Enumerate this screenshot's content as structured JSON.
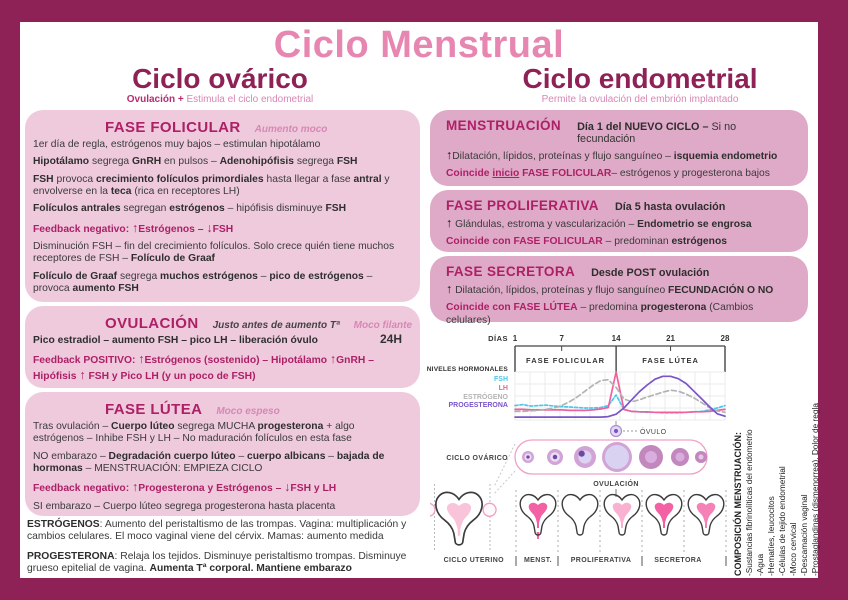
{
  "page": {
    "title": "Ciclo Menstrual"
  },
  "palette": {
    "frame": "#8e2156",
    "title_pink": "#e886b2",
    "heading_magenta": "#ad2066",
    "box_left_bg": "#efcadd",
    "box_right_bg": "#dfaac8",
    "tag_pink": "#d887b4"
  },
  "columns": {
    "ovarico": {
      "title": "Ciclo ovárico",
      "subtitle": [
        {
          "t": "Ovulación + ",
          "c": "sub1"
        },
        {
          "t": "Estimula el ciclo endometrial",
          "c": "sub2"
        }
      ]
    },
    "endometrial": {
      "title": "Ciclo endometrial",
      "subtitle": [
        {
          "t": "Permite la ovulación del embrión implantado",
          "c": "sub2"
        }
      ]
    }
  },
  "boxes": {
    "folicular": {
      "title": "FASE FOLICULAR",
      "tag": "Aumento moco",
      "lines": [
        [
          {
            "t": "1er día de regla, estrógenos muy bajos – estimulan hipotálamo"
          }
        ],
        [
          {
            "t": "Hipotálamo",
            "c": "b"
          },
          {
            "t": " segrega "
          },
          {
            "t": "GnRH",
            "c": "b"
          },
          {
            "t": " en pulsos – "
          },
          {
            "t": "Adenohipófisis",
            "c": "b"
          },
          {
            "t": " segrega "
          },
          {
            "t": "FSH",
            "c": "b"
          }
        ],
        [
          {
            "t": "FSH",
            "c": "b"
          },
          {
            "t": " provoca "
          },
          {
            "t": "crecimiento folículos primordiales",
            "c": "b"
          },
          {
            "t": " hasta llegar a fase "
          },
          {
            "t": "antral",
            "c": "b"
          },
          {
            "t": " y envolverse en la "
          },
          {
            "t": "teca",
            "c": "b"
          },
          {
            "t": " (rica en receptores LH)"
          }
        ],
        [
          {
            "t": "Folículos antrales",
            "c": "b"
          },
          {
            "t": " segregan "
          },
          {
            "t": "estrógenos",
            "c": "b"
          },
          {
            "t": " – hipófisis disminuye "
          },
          {
            "t": "FSH",
            "c": "b"
          }
        ],
        [
          {
            "t": "Feedback negativo:  ",
            "c": "m"
          },
          {
            "t": "↑",
            "c": "m ar"
          },
          {
            "t": "Estrógenos –  ",
            "c": "m"
          },
          {
            "t": "↓",
            "c": "m ar"
          },
          {
            "t": "FSH",
            "c": "m"
          }
        ],
        [
          {
            "t": "Disminución FSH – fin del crecimiento folículos. Solo crece quién tiene muchos receptores de FSH – "
          },
          {
            "t": "Folículo de Graaf",
            "c": "b"
          }
        ],
        [
          {
            "t": "Folículo de Graaf",
            "c": "b"
          },
          {
            "t": " segrega "
          },
          {
            "t": "muchos estrógenos",
            "c": "b"
          },
          {
            "t": " – "
          },
          {
            "t": "pico de estrógenos",
            "c": "b"
          },
          {
            "t": " – provoca "
          },
          {
            "t": "aumento FSH",
            "c": "b"
          }
        ]
      ]
    },
    "ovulacion": {
      "title": "OVULACIÓN",
      "tag_dark": "Justo antes de aumento Tª",
      "tag": "Moco filante",
      "duration": "24H",
      "lines": [
        [
          {
            "t": "Pico estradiol – aumento FSH – pico LH – liberación óvulo",
            "c": "b"
          }
        ],
        [
          {
            "t": "Feedback POSITIVO: ",
            "c": "m"
          },
          {
            "t": "↑",
            "c": "m ar"
          },
          {
            "t": "Estrógenos (sostenido) – Hipotálamo ",
            "c": "m"
          },
          {
            "t": "↑",
            "c": "m ar"
          },
          {
            "t": "GnRH – Hipófisis ",
            "c": "m"
          },
          {
            "t": "↑",
            "c": "m ar"
          },
          {
            "t": " FSH y Pico LH (y un poco de FSH)",
            "c": "m"
          }
        ]
      ]
    },
    "lutea": {
      "title": "FASE LÚTEA",
      "tag": "Moco espeso",
      "lines": [
        [
          {
            "t": "Tras ovulación – "
          },
          {
            "t": "Cuerpo lúteo",
            "c": "b"
          },
          {
            "t": " segrega MUCHA "
          },
          {
            "t": "progesterona",
            "c": "b"
          },
          {
            "t": " + algo estrógenos – Inhibe FSH y LH – No maduración folículos en esta fase"
          }
        ],
        [
          {
            "t": "NO embarazo – "
          },
          {
            "t": "Degradación cuerpo lúteo",
            "c": "b"
          },
          {
            "t": " – "
          },
          {
            "t": "cuerpo albicans",
            "c": "b"
          },
          {
            "t": " – "
          },
          {
            "t": "bajada de hormonas",
            "c": "b"
          },
          {
            "t": " – MENSTRUACIÓN: EMPIEZA CICLO"
          }
        ],
        [
          {
            "t": "Feedback negativo:  ",
            "c": "m"
          },
          {
            "t": "↑",
            "c": "m ar"
          },
          {
            "t": "Progesterona y Estrógenos –  ",
            "c": "m"
          },
          {
            "t": "↓",
            "c": "m ar"
          },
          {
            "t": "FSH y LH",
            "c": "m"
          }
        ],
        [
          {
            "t": "SI embarazo – Cuerpo lúteo segrega progesterona hasta placenta"
          }
        ]
      ]
    },
    "menstruacion": {
      "title": "MENSTRUACIÓN",
      "note": [
        {
          "t": "Día 1 del NUEVO CICLO – ",
          "c": "b"
        },
        {
          "t": "Si no fecundación"
        }
      ],
      "lines": [
        [
          {
            "t": "↑",
            "c": "ab"
          },
          {
            "t": "Dilatación, lípidos, proteínas y flujo sanguíneo – "
          },
          {
            "t": "isquemia endometrio",
            "c": "b"
          }
        ],
        [
          {
            "t": "Coincide ",
            "c": "m"
          },
          {
            "t": "inicio",
            "c": "m u"
          },
          {
            "t": " FASE FOLICULAR",
            "c": "m"
          },
          {
            "t": "– estrógenos y progesterona bajos"
          }
        ]
      ]
    },
    "proliferativa": {
      "title": "FASE PROLIFERATIVA",
      "note": [
        {
          "t": "Día 5 hasta ovulación",
          "c": "b"
        }
      ],
      "lines": [
        [
          {
            "t": "↑",
            "c": "ab"
          },
          {
            "t": "  Glándulas, estroma y vascularización – "
          },
          {
            "t": "Endometrio se engrosa",
            "c": "b"
          }
        ],
        [
          {
            "t": "Coincide con FASE FOLICULAR",
            "c": "m"
          },
          {
            "t": " – predominan "
          },
          {
            "t": "estrógenos",
            "c": "b"
          }
        ]
      ]
    },
    "secretora": {
      "title": "FASE SECRETORA",
      "note": [
        {
          "t": "Desde POST ovulación",
          "c": "b"
        }
      ],
      "lines": [
        [
          {
            "t": "↑",
            "c": "ab"
          },
          {
            "t": "  Dilatación, lípidos, proteínas y flujo sanguíneo     "
          },
          {
            "t": "FECUNDACIÓN O NO",
            "c": "b"
          }
        ],
        [
          {
            "t": "Coincide con FASE LÚTEA",
            "c": "m"
          },
          {
            "t": " – predomina "
          },
          {
            "t": "progesterona",
            "c": "b"
          },
          {
            "t": " (Cambios celulares)"
          }
        ]
      ]
    }
  },
  "hormone_notes": {
    "estrogenos": [
      {
        "t": "ESTRÓGENOS",
        "c": "b"
      },
      {
        "t": ": Aumento del peristaltismo de las trompas. Vagina: multiplicación y cambios celulares.  El moco vaginal viene del cérvix. Mamas: aumento medida"
      }
    ],
    "progesterona": [
      {
        "t": "PROGESTERONA",
        "c": "b"
      },
      {
        "t": ": Relaja los tejidos. Disminuye peristaltismo trompas. Disminuye grueso epitelial de vagina. "
      },
      {
        "t": "Aumenta Tª corporal. Mantiene embarazo",
        "c": "b"
      }
    ]
  },
  "sidebar": {
    "heading": "COMPOSICIÓN MENSTRUACIÓN:",
    "items": [
      "-Sustancias fibrinolíticas del endometrio",
      "-Agua",
      "-Hematíes, leucocitos",
      "-Células de tejido endometrial",
      "-Moco cervical",
      "-Descamación vaginal",
      "-Prostaglandinas (dismenorrea). Dolor de regla"
    ]
  },
  "chart_data": {
    "type": "line",
    "title": "NIVELES HORMONALES",
    "xlabel": "DÍAS",
    "x_ticks": [
      1,
      7,
      14,
      21,
      28
    ],
    "x_range": [
      1,
      28
    ],
    "y_range": [
      0,
      10
    ],
    "grid": true,
    "legend_position": "left",
    "phases": [
      {
        "label": "FASE FOLICULAR",
        "from": 1,
        "to": 14
      },
      {
        "label": "FASE LÚTEA",
        "from": 14,
        "to": 28
      }
    ],
    "series": [
      {
        "name": "FSH",
        "color": "#4ec7e8",
        "dash": "3,2",
        "values": [
          3.0,
          3.2,
          2.9,
          3.0,
          3.1,
          2.9,
          2.8,
          2.7,
          2.6,
          2.5,
          2.5,
          2.6,
          3.0,
          5.2,
          2.2,
          1.8,
          1.7,
          1.6,
          1.6,
          1.5,
          1.5,
          1.5,
          1.6,
          1.7,
          1.8,
          2.1,
          2.5,
          3.0
        ]
      },
      {
        "name": "LH",
        "color": "#f0609e",
        "dash": "",
        "values": [
          2.2,
          2.2,
          2.1,
          2.1,
          2.1,
          2.1,
          2.1,
          2.0,
          2.0,
          2.0,
          2.1,
          2.3,
          2.6,
          10.0,
          2.2,
          1.8,
          1.7,
          1.7,
          1.6,
          1.6,
          1.6,
          1.6,
          1.6,
          1.7,
          1.7,
          1.8,
          2.0,
          2.2
        ]
      },
      {
        "name": "ESTRÓGENO",
        "color": "#b3b3b3",
        "dash": "5,3",
        "values": [
          1.8,
          1.8,
          1.9,
          2.0,
          2.2,
          2.5,
          3.0,
          3.8,
          4.8,
          6.0,
          7.2,
          8.2,
          8.4,
          6.8,
          4.4,
          3.8,
          4.2,
          4.8,
          5.3,
          5.8,
          6.2,
          6.0,
          5.4,
          4.6,
          3.6,
          2.6,
          1.9,
          1.6
        ]
      },
      {
        "name": "PROGESTERONA",
        "color": "#7a55c9",
        "dash": "",
        "values": [
          0.6,
          0.6,
          0.6,
          0.6,
          0.6,
          0.6,
          0.6,
          0.6,
          0.6,
          0.6,
          0.6,
          0.6,
          0.7,
          1.2,
          2.5,
          4.2,
          5.9,
          7.3,
          8.5,
          9.1,
          9.1,
          8.6,
          7.6,
          6.0,
          4.4,
          2.8,
          1.3,
          0.8
        ]
      }
    ],
    "ovarian_cycle": {
      "label": "CICLO OVÁRICO",
      "ovulo_label": "ÓVULO",
      "ovulacion_label": "OVULACIÓN",
      "follicles": [
        {
          "r": 6,
          "type": "early"
        },
        {
          "r": 8,
          "type": "early"
        },
        {
          "r": 11,
          "type": "antral"
        },
        {
          "r": 15,
          "type": "graaf"
        },
        {
          "r": 12,
          "type": "luteum"
        },
        {
          "r": 9,
          "type": "luteum"
        },
        {
          "r": 6,
          "type": "albicans"
        }
      ]
    },
    "uterine_cycle": {
      "label": "CICLO UTERINO",
      "phase_labels": [
        "MENST.",
        "PROLIFERATIVA",
        "SECRETORA"
      ]
    }
  }
}
